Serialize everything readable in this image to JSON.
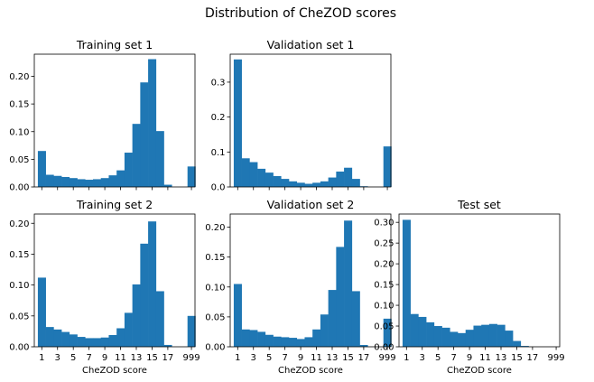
{
  "figure": {
    "title": "Distribution of CheZOD scores"
  },
  "chart_data": [
    {
      "type": "bar",
      "title": "Training set 1",
      "xlabel": "",
      "ylabel": "",
      "categories": [
        "1",
        "2",
        "3",
        "4",
        "5",
        "6",
        "7",
        "8",
        "9",
        "10",
        "11",
        "12",
        "13",
        "14",
        "15",
        "16",
        "17",
        "18",
        "999"
      ],
      "values": [
        0.065,
        0.022,
        0.02,
        0.018,
        0.016,
        0.014,
        0.013,
        0.014,
        0.016,
        0.021,
        0.03,
        0.062,
        0.114,
        0.189,
        0.231,
        0.101,
        0.004,
        0,
        0.037
      ],
      "ylim": [
        0,
        0.24
      ],
      "yticks": [
        "0.00",
        "0.05",
        "0.10",
        "0.15",
        "0.20"
      ],
      "xticks": [],
      "color": "#1f77b4"
    },
    {
      "type": "bar",
      "title": "Validation set 1",
      "xlabel": "",
      "ylabel": "",
      "categories": [
        "1",
        "2",
        "3",
        "4",
        "5",
        "6",
        "7",
        "8",
        "9",
        "10",
        "11",
        "12",
        "13",
        "14",
        "15",
        "16",
        "17",
        "18",
        "999"
      ],
      "values": [
        0.365,
        0.082,
        0.071,
        0.052,
        0.041,
        0.031,
        0.023,
        0.016,
        0.012,
        0.009,
        0.012,
        0.016,
        0.027,
        0.044,
        0.055,
        0.023,
        0.002,
        0,
        0.116
      ],
      "ylim": [
        0,
        0.38
      ],
      "yticks": [
        "0.0",
        "0.1",
        "0.2",
        "0.3"
      ],
      "xticks": [],
      "color": "#1f77b4"
    },
    {
      "type": "bar",
      "title": "Training set 2",
      "xlabel": "CheZOD score",
      "ylabel": "",
      "categories": [
        "1",
        "2",
        "3",
        "4",
        "5",
        "6",
        "7",
        "8",
        "9",
        "10",
        "11",
        "12",
        "13",
        "14",
        "15",
        "16",
        "17",
        "18",
        "999"
      ],
      "values": [
        0.112,
        0.032,
        0.028,
        0.024,
        0.02,
        0.016,
        0.014,
        0.014,
        0.015,
        0.019,
        0.03,
        0.055,
        0.101,
        0.167,
        0.203,
        0.09,
        0.003,
        0,
        0.05
      ],
      "ylim": [
        0,
        0.215
      ],
      "yticks": [
        "0.00",
        "0.05",
        "0.10",
        "0.15",
        "0.20"
      ],
      "xticks": [
        "1",
        "3",
        "5",
        "7",
        "9",
        "11",
        "13",
        "15",
        "17",
        "999"
      ],
      "color": "#1f77b4"
    },
    {
      "type": "bar",
      "title": "Validation set 2",
      "xlabel": "CheZOD score",
      "ylabel": "",
      "categories": [
        "1",
        "2",
        "3",
        "4",
        "5",
        "6",
        "7",
        "8",
        "9",
        "10",
        "11",
        "12",
        "13",
        "14",
        "15",
        "16",
        "17",
        "18",
        "999"
      ],
      "values": [
        0.105,
        0.029,
        0.028,
        0.025,
        0.02,
        0.017,
        0.016,
        0.015,
        0.013,
        0.016,
        0.029,
        0.054,
        0.095,
        0.167,
        0.211,
        0.093,
        0.003,
        0,
        0.047
      ],
      "ylim": [
        0,
        0.222
      ],
      "yticks": [
        "0.00",
        "0.05",
        "0.10",
        "0.15",
        "0.20"
      ],
      "xticks": [
        "1",
        "3",
        "5",
        "7",
        "9",
        "11",
        "13",
        "15",
        "17",
        "999"
      ],
      "color": "#1f77b4"
    },
    {
      "type": "bar",
      "title": "Test set",
      "xlabel": "CheZOD score",
      "ylabel": "",
      "categories": [
        "1",
        "2",
        "3",
        "4",
        "5",
        "6",
        "7",
        "8",
        "9",
        "10",
        "11",
        "12",
        "13",
        "14",
        "15",
        "16",
        "17",
        "18",
        "999"
      ],
      "values": [
        0.306,
        0.079,
        0.072,
        0.059,
        0.05,
        0.046,
        0.036,
        0.033,
        0.041,
        0.051,
        0.053,
        0.055,
        0.053,
        0.039,
        0.014,
        0.002,
        0,
        0,
        0
      ],
      "ylim": [
        0,
        0.32
      ],
      "yticks": [
        "0.00",
        "0.05",
        "0.10",
        "0.15",
        "0.20",
        "0.25",
        "0.30"
      ],
      "xticks": [
        "1",
        "3",
        "5",
        "7",
        "9",
        "11",
        "13",
        "15",
        "17",
        "999"
      ],
      "color": "#1f77b4"
    }
  ]
}
